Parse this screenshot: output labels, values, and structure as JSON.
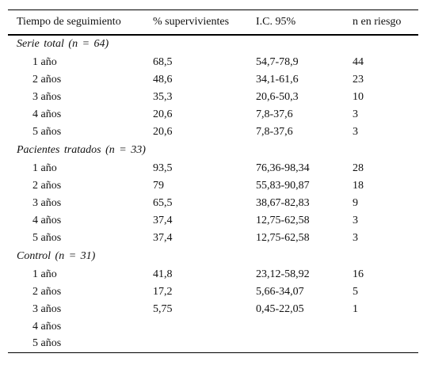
{
  "table": {
    "header": [
      "Tiempo de seguimiento",
      "% supervivientes",
      "I.C. 95%",
      "n en riesgo"
    ],
    "groups": [
      {
        "label": "Serie total (n = 64)",
        "rows": [
          [
            "1 año",
            "68,5",
            "54,7-78,9",
            "44"
          ],
          [
            "2 años",
            "48,6",
            "34,1-61,6",
            "23"
          ],
          [
            "3 años",
            "35,3",
            "20,6-50,3",
            "10"
          ],
          [
            "4 años",
            "20,6",
            "7,8-37,6",
            "3"
          ],
          [
            "5 años",
            "20,6",
            "7,8-37,6",
            "3"
          ]
        ]
      },
      {
        "label": "Pacientes tratados (n = 33)",
        "rows": [
          [
            "1 año",
            "93,5",
            "76,36-98,34",
            "28"
          ],
          [
            "2 años",
            "79",
            "55,83-90,87",
            "18"
          ],
          [
            "3 años",
            "65,5",
            "38,67-82,83",
            "9"
          ],
          [
            "4 años",
            "37,4",
            "12,75-62,58",
            "3"
          ],
          [
            "5 años",
            "37,4",
            "12,75-62,58",
            "3"
          ]
        ]
      },
      {
        "label": "Control (n = 31)",
        "rows": [
          [
            "1 año",
            "41,8",
            "23,12-58,92",
            "16"
          ],
          [
            "2 años",
            "17,2",
            "5,66-34,07",
            "5"
          ],
          [
            "3 años",
            "5,75",
            "0,45-22,05",
            "1"
          ],
          [
            "4 años"
          ],
          [
            "5 años"
          ]
        ]
      }
    ]
  }
}
